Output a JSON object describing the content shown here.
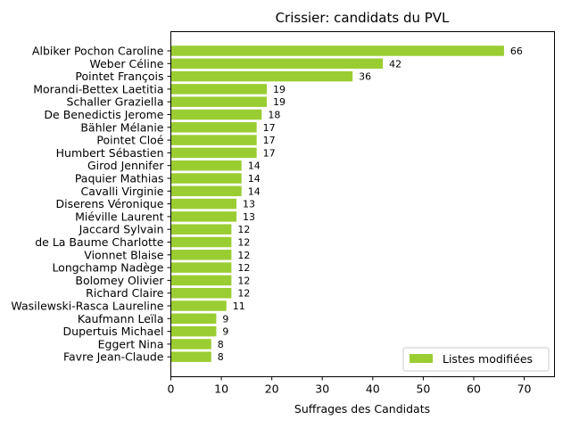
{
  "chart_data": {
    "type": "bar",
    "orientation": "horizontal",
    "title": "Crissier: candidats du PVL",
    "xlabel": "Suffrages des Candidats",
    "ylabel": "",
    "xlim": [
      0,
      76
    ],
    "x_ticks": [
      0,
      10,
      20,
      30,
      40,
      50,
      60,
      70
    ],
    "grid": false,
    "legend_position": "lower-right",
    "bar_color": "#9acd32",
    "categories": [
      "Albiker Pochon Caroline",
      "Weber Céline",
      "Pointet François",
      "Morandi-Bettex Laetitia",
      "Schaller Graziella",
      "De Benedictis Jerome",
      "Bähler Mélanie",
      "Pointet Cloé",
      "Humbert Sébastien",
      "Girod Jennifer",
      "Paquier Mathias",
      "Cavalli Virginie",
      "Diserens Véronique",
      "Miéville Laurent",
      "Jaccard Sylvain",
      "de La Baume Charlotte",
      "Vionnet Blaise",
      "Longchamp Nadège",
      "Bolomey Olivier",
      "Richard Claire",
      "Wasilewski-Rasca Laureline",
      "Kaufmann Leïla",
      "Dupertuis Michael",
      "Eggert Nina",
      "Favre Jean-Claude"
    ],
    "series": [
      {
        "name": "Listes modifiées",
        "values": [
          66,
          42,
          36,
          19,
          19,
          18,
          17,
          17,
          17,
          14,
          14,
          14,
          13,
          13,
          12,
          12,
          12,
          12,
          12,
          12,
          11,
          9,
          9,
          8,
          8
        ]
      }
    ]
  }
}
